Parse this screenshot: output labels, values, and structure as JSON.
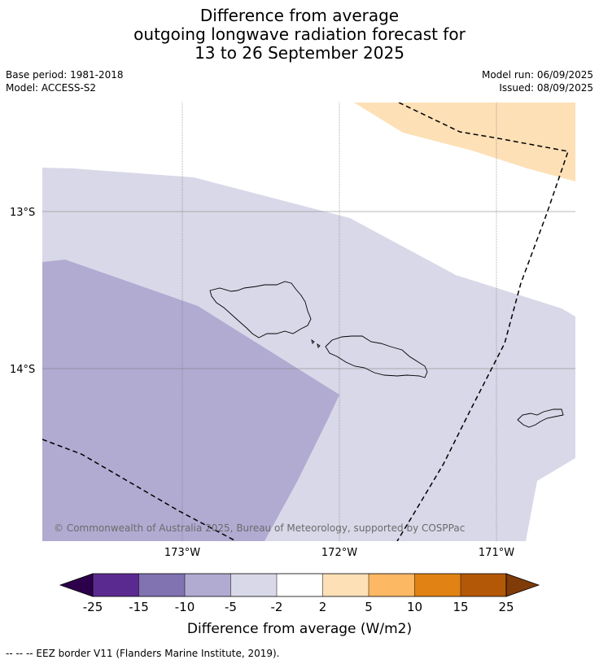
{
  "header": {
    "title_line1": "Difference from average",
    "title_line2": "outgoing longwave radiation forecast for",
    "title_line3": "13 to 26 September 2025",
    "base_period": "Base period: 1981-2018",
    "model": "Model: ACCESS-S2",
    "model_run": "Model run: 06/09/2025",
    "issued": "Issued: 08/09/2025"
  },
  "map": {
    "lat_labels": [
      "13°S",
      "14°S"
    ],
    "lon_labels": [
      "173°W",
      "172°W",
      "171°W"
    ],
    "copyright": "© Commonwealth of Australia 2025, Bureau of Meteorology, supported by COSPPac",
    "colors": {
      "neg_5_10": "#b1aad1",
      "neg_2_5": "#d8d8e9",
      "pos_2_5": "#fde0b6",
      "eez_line": "#000000"
    }
  },
  "colorbar": {
    "ticks": [
      "-25",
      "-15",
      "-10",
      "-5",
      "-2",
      "2",
      "5",
      "10",
      "15",
      "25"
    ],
    "label": "Difference from average (W/m2)",
    "colors": [
      "#2d004b",
      "#5b2a90",
      "#8172b2",
      "#b1aad1",
      "#d8d8e9",
      "#ffffff",
      "#fde0b6",
      "#fdb863",
      "#e08214",
      "#b35806",
      "#7f3b08"
    ]
  },
  "footer": {
    "legend": "-- -- -- EEZ border V11 (Flanders Marine Institute, 2019)."
  }
}
